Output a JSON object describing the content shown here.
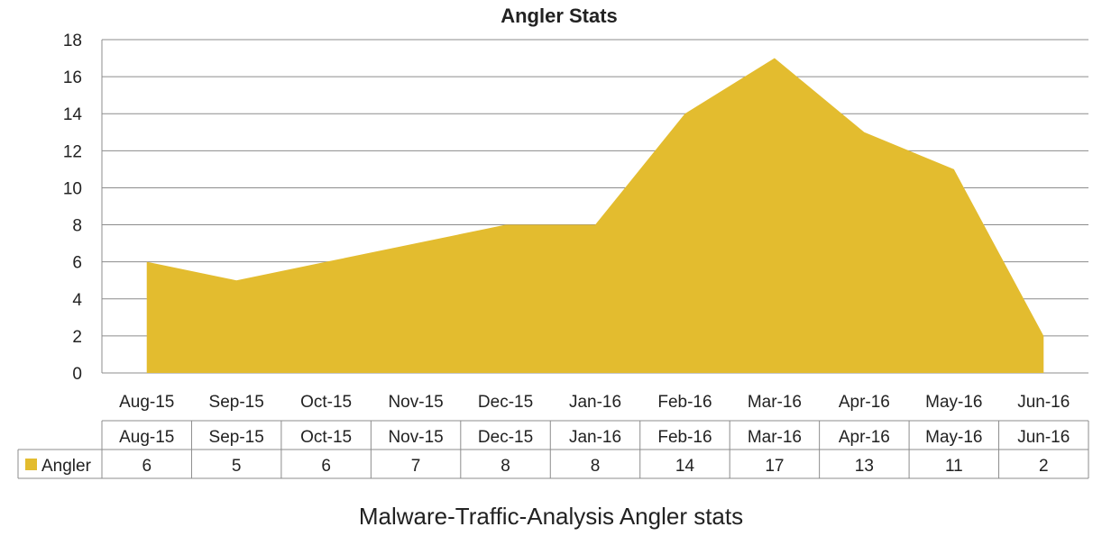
{
  "chart_data": {
    "type": "area",
    "title": "Angler Stats",
    "xlabel": "",
    "ylabel": "",
    "categories": [
      "Aug-15",
      "Sep-15",
      "Oct-15",
      "Nov-15",
      "Dec-15",
      "Jan-16",
      "Feb-16",
      "Mar-16",
      "Apr-16",
      "May-16",
      "Jun-16"
    ],
    "series": [
      {
        "name": "Angler",
        "values": [
          6,
          5,
          6,
          7,
          8,
          8,
          14,
          17,
          13,
          11,
          2
        ],
        "color": "#E3BC2F"
      }
    ],
    "ylim": [
      0,
      18
    ],
    "yticks": [
      0,
      2,
      4,
      6,
      8,
      10,
      12,
      14,
      16,
      18
    ],
    "grid": "horizontal",
    "data_table": true
  },
  "caption": "Malware-Traffic-Analysis Angler stats",
  "colors": {
    "grid": "#8c8c8c",
    "text": "#222222"
  }
}
